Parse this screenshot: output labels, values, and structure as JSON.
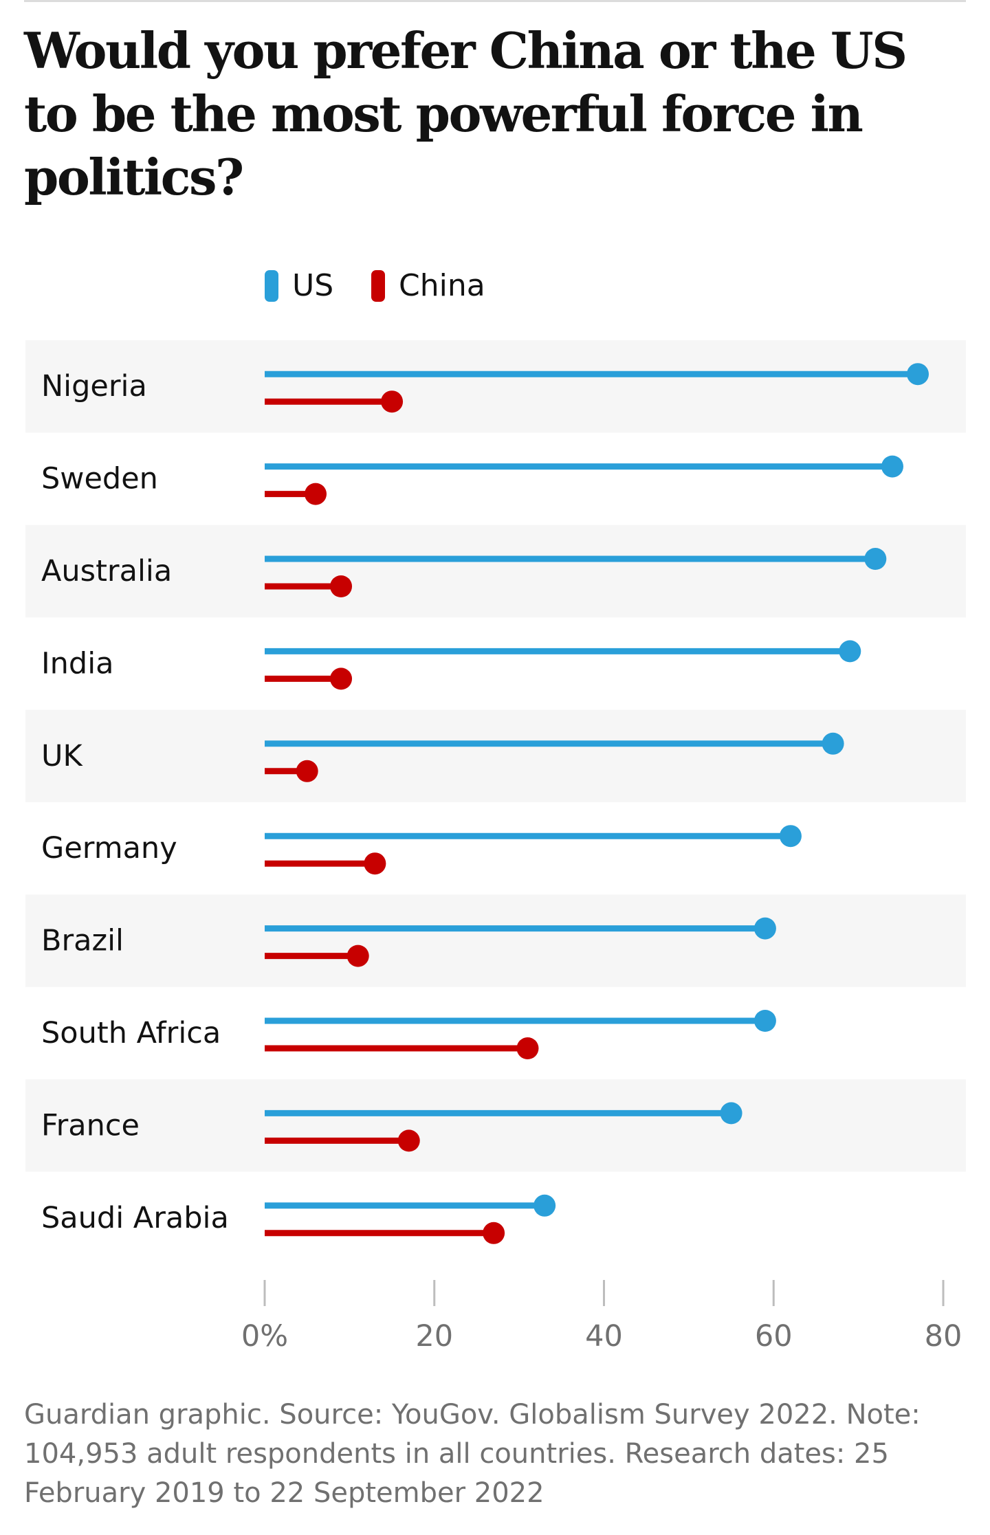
{
  "header": {
    "title": "Would you prefer China or the US to be the most powerful force in politics?"
  },
  "chart_data": {
    "type": "dumbbell",
    "title": "Would you prefer China or the US to be the most powerful force in politics?",
    "xlabel": "",
    "ylabel": "",
    "xlim": [
      0,
      80
    ],
    "x_ticks": [
      0,
      20,
      40,
      60,
      80
    ],
    "x_tick_labels": [
      "0%",
      "20",
      "40",
      "60",
      "80"
    ],
    "legend_position": "top-left",
    "categories": [
      "Nigeria",
      "Sweden",
      "Australia",
      "India",
      "UK",
      "Germany",
      "Brazil",
      "South Africa",
      "France",
      "Saudi Arabia"
    ],
    "series": [
      {
        "name": "US",
        "color": "#2a9fd9",
        "values": [
          77,
          74,
          72,
          69,
          67,
          62,
          59,
          59,
          55,
          33
        ]
      },
      {
        "name": "China",
        "color": "#c70000",
        "values": [
          15,
          6,
          9,
          9,
          5,
          13,
          11,
          31,
          17,
          27
        ]
      }
    ]
  },
  "footer": {
    "note": "Guardian graphic. Source: YouGov. Globalism Survey 2022. Note: 104,953 adult respondents in all countries. Research dates: 25 February 2019 to 22 September 2022"
  }
}
